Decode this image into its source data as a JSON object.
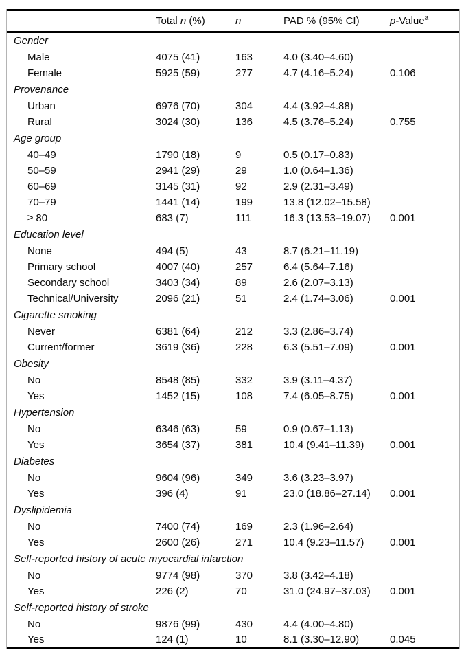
{
  "table": {
    "header": {
      "columns": [
        {
          "key": "label",
          "parts": []
        },
        {
          "key": "total",
          "parts": [
            {
              "text": "Total ",
              "italic": false
            },
            {
              "text": "n",
              "italic": true
            },
            {
              "text": " (%)",
              "italic": false
            }
          ]
        },
        {
          "key": "n",
          "parts": [
            {
              "text": "n",
              "italic": true
            }
          ]
        },
        {
          "key": "pad",
          "parts": [
            {
              "text": "PAD % (95% CI)",
              "italic": false
            }
          ]
        },
        {
          "key": "pvalue",
          "parts": [
            {
              "text": "p",
              "italic": true
            },
            {
              "text": "-Value",
              "italic": false
            }
          ],
          "sup": "a"
        }
      ]
    },
    "groups": [
      {
        "label": "Gender",
        "rows": [
          {
            "label": "Male",
            "total": "4075 (41)",
            "n": "163",
            "pad": "4.0 (3.40–4.60)",
            "pvalue": ""
          },
          {
            "label": "Female",
            "total": "5925 (59)",
            "n": "277",
            "pad": "4.7 (4.16–5.24)",
            "pvalue": "0.106"
          }
        ]
      },
      {
        "label": "Provenance",
        "rows": [
          {
            "label": "Urban",
            "total": "6976 (70)",
            "n": "304",
            "pad": "4.4 (3.92–4.88)",
            "pvalue": ""
          },
          {
            "label": "Rural",
            "total": "3024 (30)",
            "n": "136",
            "pad": "4.5 (3.76–5.24)",
            "pvalue": "0.755"
          }
        ]
      },
      {
        "label": "Age group",
        "rows": [
          {
            "label": "40–49",
            "total": "1790 (18)",
            "n": "9",
            "pad": "0.5 (0.17–0.83)",
            "pvalue": ""
          },
          {
            "label": "50–59",
            "total": "2941 (29)",
            "n": "29",
            "pad": "1.0 (0.64–1.36)",
            "pvalue": ""
          },
          {
            "label": "60–69",
            "total": "3145 (31)",
            "n": "92",
            "pad": "2.9 (2.31–3.49)",
            "pvalue": ""
          },
          {
            "label": "70–79",
            "total": "1441 (14)",
            "n": "199",
            "pad": "13.8 (12.02–15.58)",
            "pvalue": ""
          },
          {
            "label": "≥ 80",
            "total": "683 (7)",
            "n": "111",
            "pad": "16.3 (13.53–19.07)",
            "pvalue": "0.001"
          }
        ]
      },
      {
        "label": "Education level",
        "rows": [
          {
            "label": "None",
            "total": "494 (5)",
            "n": "43",
            "pad": "8.7 (6.21–11.19)",
            "pvalue": ""
          },
          {
            "label": "Primary school",
            "total": "4007 (40)",
            "n": "257",
            "pad": "6.4 (5.64–7.16)",
            "pvalue": ""
          },
          {
            "label": "Secondary school",
            "total": "3403 (34)",
            "n": "89",
            "pad": "2.6 (2.07–3.13)",
            "pvalue": ""
          },
          {
            "label": "Technical/University",
            "total": "2096 (21)",
            "n": "51",
            "pad": "2.4 (1.74–3.06)",
            "pvalue": "0.001"
          }
        ]
      },
      {
        "label": "Cigarette smoking",
        "rows": [
          {
            "label": "Never",
            "total": "6381 (64)",
            "n": "212",
            "pad": "3.3 (2.86–3.74)",
            "pvalue": ""
          },
          {
            "label": "Current/former",
            "total": "3619 (36)",
            "n": "228",
            "pad": "6.3 (5.51–7.09)",
            "pvalue": "0.001"
          }
        ]
      },
      {
        "label": "Obesity",
        "rows": [
          {
            "label": "No",
            "total": "8548 (85)",
            "n": "332",
            "pad": "3.9 (3.11–4.37)",
            "pvalue": ""
          },
          {
            "label": "Yes",
            "total": "1452 (15)",
            "n": "108",
            "pad": "7.4 (6.05–8.75)",
            "pvalue": "0.001"
          }
        ]
      },
      {
        "label": "Hypertension",
        "rows": [
          {
            "label": "No",
            "total": "6346 (63)",
            "n": "59",
            "pad": "0.9 (0.67–1.13)",
            "pvalue": ""
          },
          {
            "label": "Yes",
            "total": "3654 (37)",
            "n": "381",
            "pad": "10.4 (9.41–11.39)",
            "pvalue": "0.001"
          }
        ]
      },
      {
        "label": "Diabetes",
        "rows": [
          {
            "label": "No",
            "total": "9604 (96)",
            "n": "349",
            "pad": "3.6 (3.23–3.97)",
            "pvalue": ""
          },
          {
            "label": "Yes",
            "total": "396 (4)",
            "n": "91",
            "pad": "23.0 (18.86–27.14)",
            "pvalue": "0.001"
          }
        ]
      },
      {
        "label": "Dyslipidemia",
        "rows": [
          {
            "label": "No",
            "total": "7400 (74)",
            "n": "169",
            "pad": "2.3 (1.96–2.64)",
            "pvalue": ""
          },
          {
            "label": "Yes",
            "total": "2600 (26)",
            "n": "271",
            "pad": "10.4 (9.23–11.57)",
            "pvalue": "0.001"
          }
        ]
      },
      {
        "label": "Self-reported history of acute myocardial infarction",
        "rows": [
          {
            "label": "No",
            "total": "9774 (98)",
            "n": "370",
            "pad": "3.8 (3.42–4.18)",
            "pvalue": ""
          },
          {
            "label": "Yes",
            "total": "226 (2)",
            "n": "70",
            "pad": "31.0 (24.97–37.03)",
            "pvalue": "0.001"
          }
        ]
      },
      {
        "label": "Self-reported history of stroke",
        "rows": [
          {
            "label": "No",
            "total": "9876 (99)",
            "n": "430",
            "pad": "4.4 (4.00–4.80)",
            "pvalue": ""
          },
          {
            "label": "Yes",
            "total": "124 (1)",
            "n": "10",
            "pad": "8.1 (3.30–12.90)",
            "pvalue": "0.045"
          }
        ]
      }
    ]
  }
}
